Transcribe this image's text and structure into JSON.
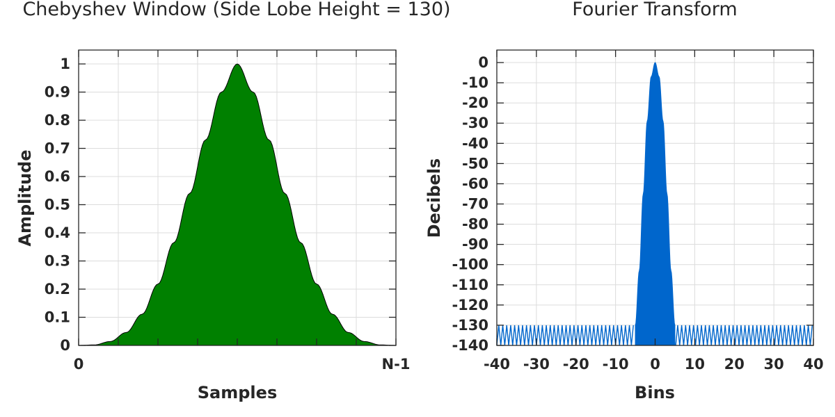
{
  "chart_data": [
    {
      "type": "area",
      "title": "Chebyshev Window (Side Lobe Height = 130)",
      "xlabel": "Samples",
      "ylabel": "Amplitude",
      "xlim": [
        0,
        1
      ],
      "ylim": [
        0,
        1
      ],
      "x_tick_labels": [
        "0",
        "N-1"
      ],
      "y_ticks": [
        0,
        0.1,
        0.2,
        0.3,
        0.4,
        0.5,
        0.6,
        0.7,
        0.8,
        0.9,
        1
      ],
      "y_tick_labels": [
        "0",
        "0.1",
        "0.2",
        "0.3",
        "0.4",
        "0.5",
        "0.6",
        "0.7",
        "0.8",
        "0.9",
        "1"
      ],
      "grid": true,
      "fill_color": "#008000",
      "series": [
        {
          "x": [
            0,
            0.05,
            0.1,
            0.15,
            0.2,
            0.25,
            0.3,
            0.35,
            0.4,
            0.45,
            0.5,
            0.55,
            0.6,
            0.65,
            0.7,
            0.75,
            0.8,
            0.85,
            0.9,
            0.95,
            1
          ],
          "y": [
            0.0,
            0.002,
            0.014,
            0.046,
            0.111,
            0.218,
            0.365,
            0.54,
            0.73,
            0.9,
            1.0,
            0.9,
            0.73,
            0.54,
            0.365,
            0.218,
            0.111,
            0.046,
            0.014,
            0.002,
            0.0
          ]
        }
      ]
    },
    {
      "type": "line",
      "title": "Fourier Transform",
      "xlabel": "Bins",
      "ylabel": "Decibels",
      "xlim": [
        -40,
        40
      ],
      "ylim": [
        -140,
        0
      ],
      "x_ticks": [
        -40,
        -30,
        -20,
        -10,
        0,
        10,
        20,
        30,
        40
      ],
      "x_tick_labels": [
        "-40",
        "-30",
        "-20",
        "-10",
        "0",
        "10",
        "20",
        "30",
        "40"
      ],
      "y_ticks": [
        0,
        -10,
        -20,
        -30,
        -40,
        -50,
        -60,
        -70,
        -80,
        -90,
        -100,
        -110,
        -120,
        -130,
        -140
      ],
      "y_tick_labels": [
        "0",
        "-10",
        "-20",
        "-30",
        "-40",
        "-50",
        "-60",
        "-70",
        "-80",
        "-90",
        "-100",
        "-110",
        "-120",
        "-130",
        "-140"
      ],
      "grid": true,
      "line_color": "#0066CC",
      "main_lobe": {
        "x": [
          -5,
          -4,
          -3,
          -2,
          -1,
          0,
          1,
          2,
          3,
          4,
          5
        ],
        "y": [
          -130,
          -103,
          -65,
          -29,
          -7,
          0,
          -7,
          -29,
          -65,
          -103,
          -130
        ]
      },
      "side_lobe_level": -130,
      "side_lobe_period_bins": 1
    }
  ]
}
